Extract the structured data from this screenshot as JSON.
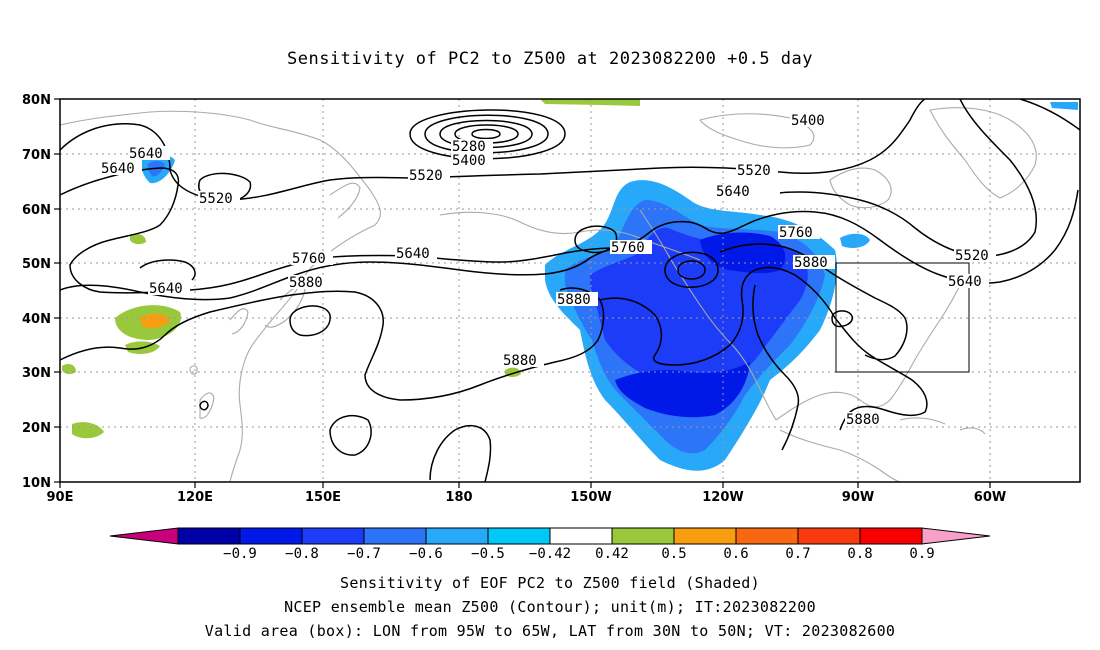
{
  "title": "Sensitivity of PC2 to Z500 at 2023082200 +0.5 day",
  "lat_labels": [
    "80N",
    "70N",
    "60N",
    "50N",
    "40N",
    "30N",
    "20N",
    "10N"
  ],
  "lon_labels": [
    "90E",
    "120E",
    "150E",
    "180",
    "150W",
    "120W",
    "90W",
    "60W"
  ],
  "contour_labels": [
    "5280",
    "5400",
    "5400",
    "5520",
    "5520",
    "5520",
    "5520",
    "5640",
    "5640",
    "5640",
    "5640",
    "5640",
    "5640",
    "5760",
    "5760",
    "5760",
    "5880",
    "5880",
    "5880",
    "5880",
    "5880"
  ],
  "colorbar": {
    "labels": [
      "-0.9",
      "-0.8",
      "-0.7",
      "-0.6",
      "-0.5",
      "-0.42",
      "0.42",
      "0.5",
      "0.6",
      "0.7",
      "0.8",
      "0.9"
    ],
    "colors": [
      "#c8007c",
      "#0000a8",
      "#0018e8",
      "#1c3cf8",
      "#2c74f8",
      "#28a8f8",
      "#00c8f8",
      "#ffffff",
      "#9ac83c",
      "#f89c10",
      "#f86810",
      "#f83c10",
      "#f80000",
      "#f8a0c8"
    ]
  },
  "captions": [
    "Sensitivity of EOF PC2 to Z500 field (Shaded)",
    "NCEP ensemble mean Z500 (Contour); unit(m); IT:2023082200",
    "Valid area (box): LON from 95W to 65W, LAT from 30N to 50N; VT: 2023082600"
  ]
}
